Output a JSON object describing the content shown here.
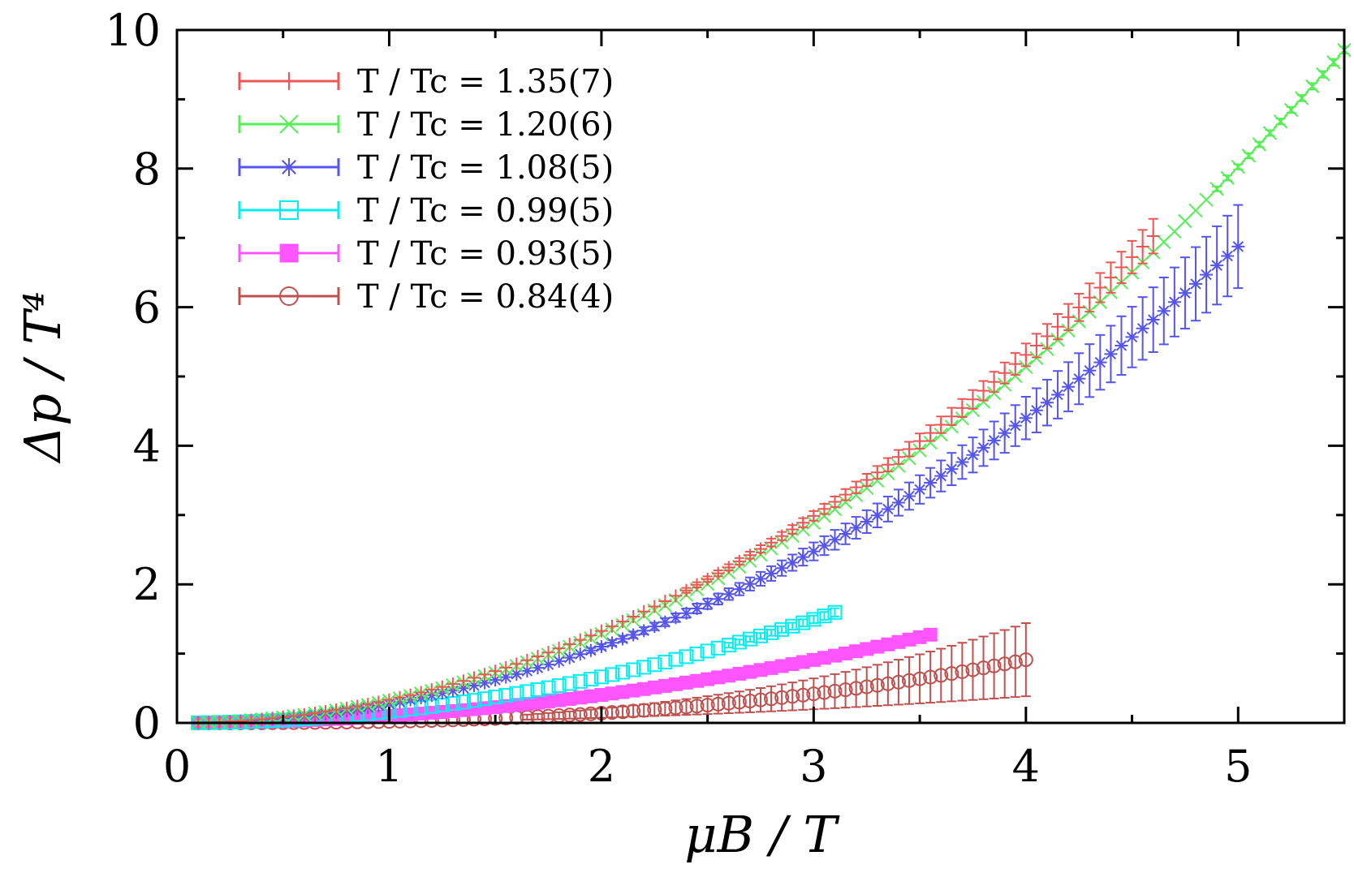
{
  "chart_data": {
    "type": "scatter",
    "title": "",
    "xlabel": "μB / T",
    "ylabel": "Δp / T⁴",
    "xlim": [
      0,
      5.5
    ],
    "ylim": [
      0,
      10
    ],
    "x_ticks": [
      0,
      1,
      2,
      3,
      4,
      5
    ],
    "y_ticks": [
      0,
      2,
      4,
      6,
      8,
      10
    ],
    "x_tick_labels": [
      "0",
      "1",
      "2",
      "3",
      "4",
      "5"
    ],
    "y_tick_labels": [
      "0",
      "2",
      "4",
      "6",
      "8",
      "10"
    ],
    "legend_position": "top-left",
    "series": [
      {
        "name": "T / Tc = 1.35(7)",
        "color": "#ee5555",
        "marker": "plus",
        "x_start": 0.1,
        "x_end": 4.6,
        "coefficient": 0.332,
        "exponent": 2,
        "error_at_end": 0.25
      },
      {
        "name": "T / Tc = 1.20(6)",
        "color": "#55ee55",
        "marker": "cross",
        "x_start": 0.1,
        "x_end": 5.5,
        "coefficient": 0.321,
        "exponent": 2,
        "error_at_end": 0.05
      },
      {
        "name": "T / Tc = 1.08(5)",
        "color": "#5555ee",
        "marker": "asterisk",
        "x_start": 0.1,
        "x_end": 5.0,
        "coefficient": 0.275,
        "exponent": 2,
        "error_at_end": 0.6
      },
      {
        "name": "T / Tc = 0.99(5)",
        "color": "#00eeee",
        "marker": "square-open",
        "x_start": 0.1,
        "x_end": 3.1,
        "coefficient": 0.166,
        "exponent": 2,
        "error_at_end": 0.06
      },
      {
        "name": "T / Tc = 0.93(5)",
        "color": "#ff55ff",
        "marker": "square-filled",
        "x_start": 0.1,
        "x_end": 3.55,
        "coefficient": 0.101,
        "exponent": 2,
        "error_at_end": 0.05
      },
      {
        "name": "T / Tc = 0.84(4)",
        "color": "#c0504d",
        "marker": "circle-open",
        "x_start": 0.1,
        "x_end": 3.98,
        "coefficient": 0.0216,
        "exponent": 2.7,
        "error_at_end": 0.52
      }
    ]
  }
}
